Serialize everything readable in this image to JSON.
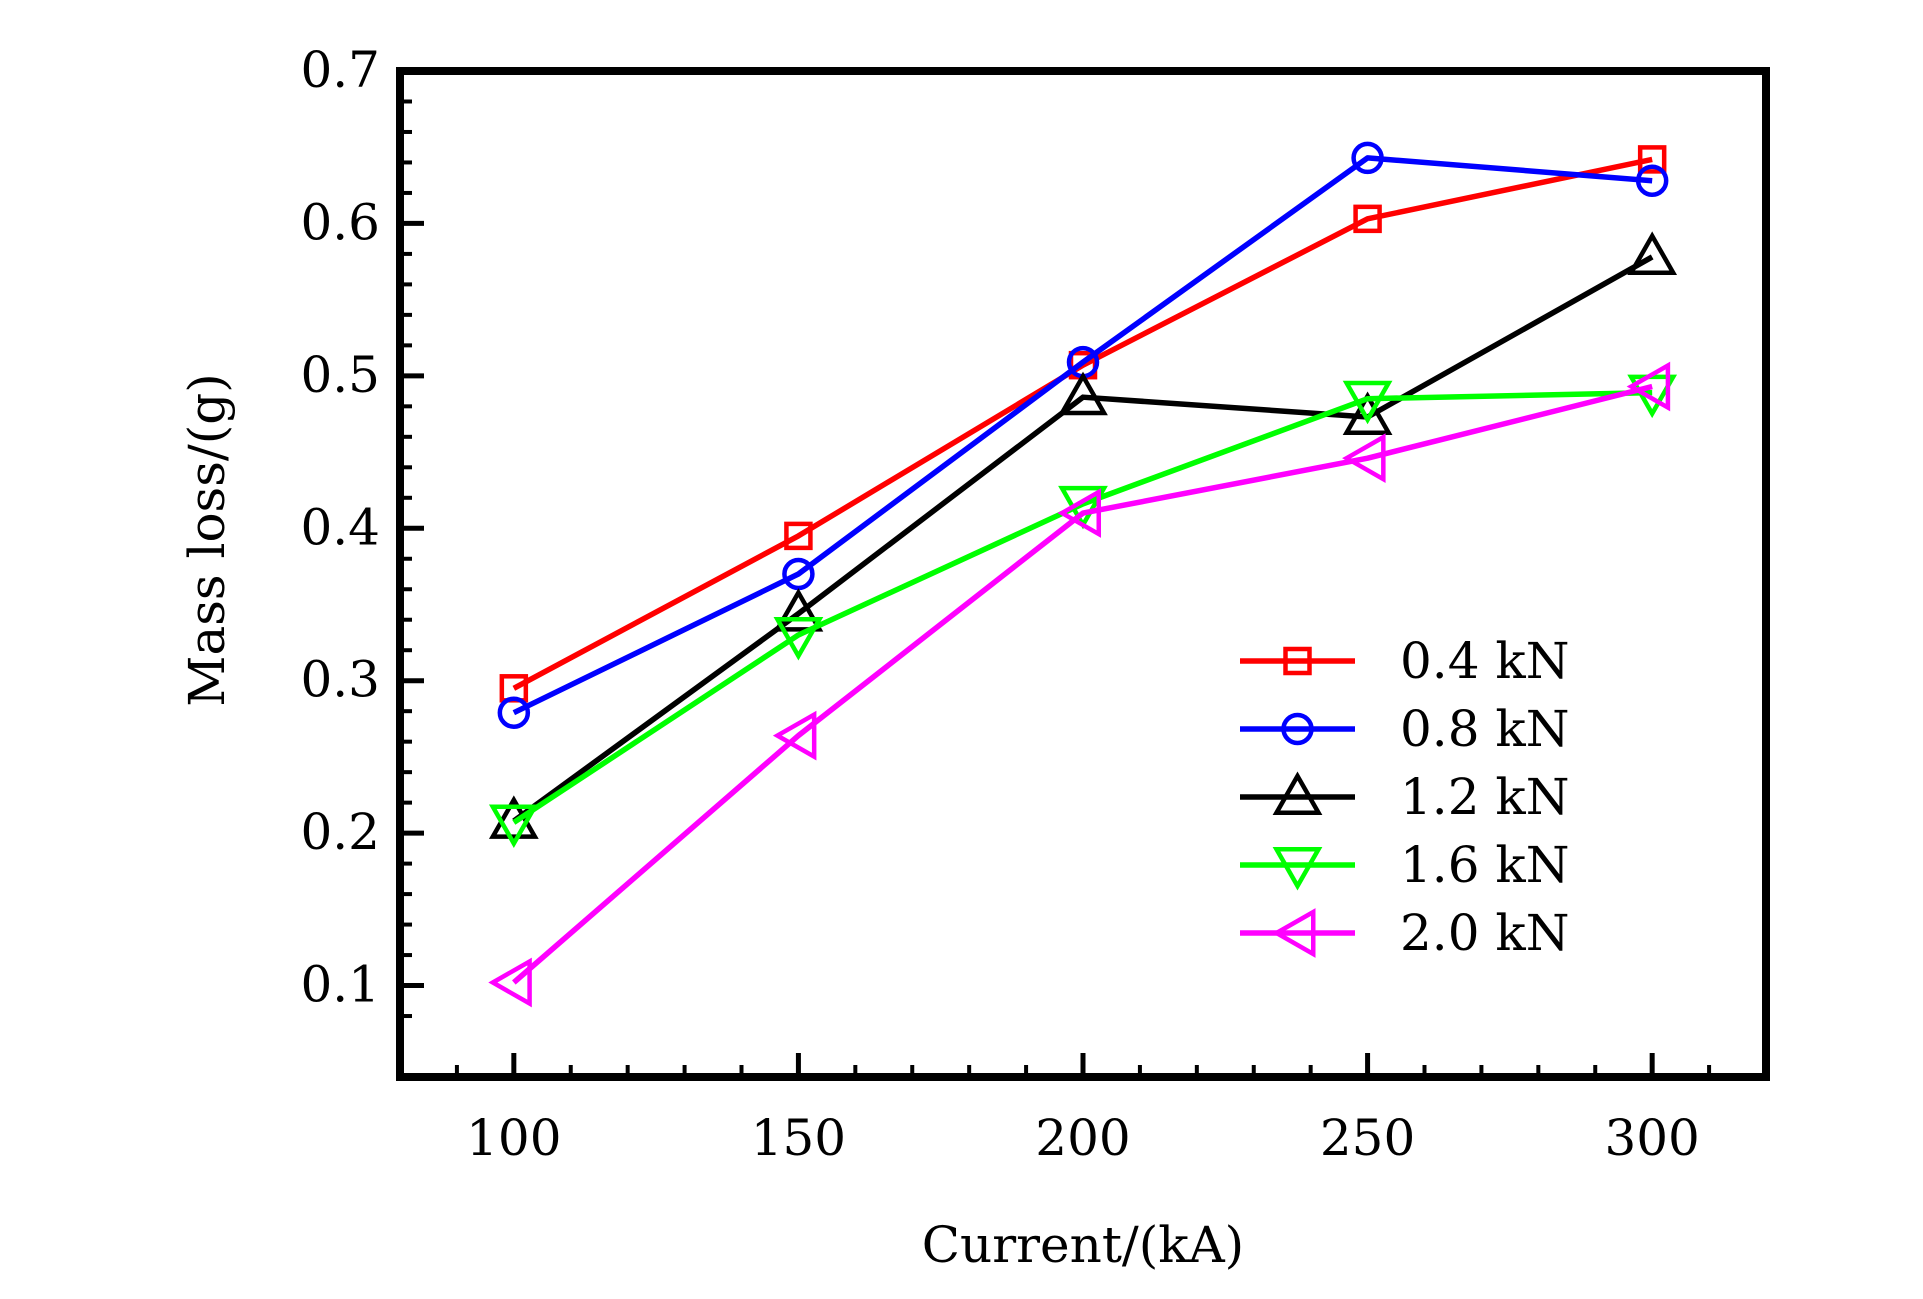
{
  "chart_data": {
    "type": "line",
    "title": "",
    "xlabel": "Current/(kA)",
    "ylabel": "Mass loss/(g)",
    "x": [
      100,
      150,
      200,
      250,
      300
    ],
    "xlim": [
      80,
      320
    ],
    "ylim": [
      0.04,
      0.7
    ],
    "xticks": [
      100,
      150,
      200,
      250,
      300
    ],
    "xtick_labels": [
      "100",
      "150",
      "200",
      "250",
      "300"
    ],
    "yticks": [
      0.1,
      0.2,
      0.3,
      0.4,
      0.5,
      0.6,
      0.7
    ],
    "ytick_labels": [
      "0.1",
      "0.2",
      "0.3",
      "0.4",
      "0.5",
      "0.6",
      "0.7"
    ],
    "grid": false,
    "legend_position": "bottom-right",
    "series": [
      {
        "name": "0.4 kN",
        "color": "#ff0000",
        "marker": "square",
        "values": [
          0.295,
          0.395,
          0.507,
          0.603,
          0.642
        ]
      },
      {
        "name": "0.8 kN",
        "color": "#0000ff",
        "marker": "circle",
        "values": [
          0.279,
          0.37,
          0.509,
          0.643,
          0.628
        ]
      },
      {
        "name": "1.2 kN",
        "color": "#000000",
        "marker": "triangle-up",
        "values": [
          0.208,
          0.344,
          0.486,
          0.473,
          0.578
        ]
      },
      {
        "name": "1.6 kN",
        "color": "#00ff00",
        "marker": "triangle-down",
        "values": [
          0.207,
          0.33,
          0.416,
          0.485,
          0.489
        ]
      },
      {
        "name": "2.0 kN",
        "color": "#ff00ff",
        "marker": "triangle-left",
        "values": [
          0.102,
          0.264,
          0.41,
          0.446,
          0.493
        ]
      }
    ]
  }
}
